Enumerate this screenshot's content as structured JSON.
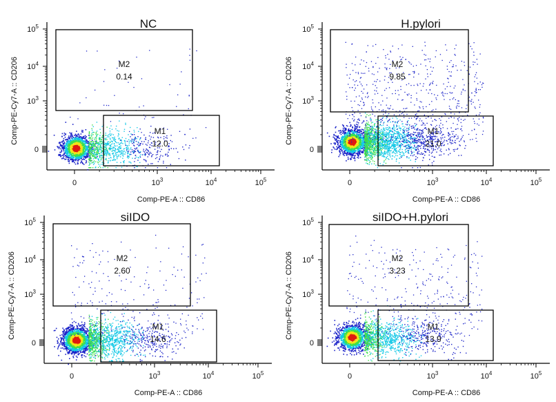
{
  "chart_data": [
    {
      "type": "scatter",
      "title": "NC",
      "xlabel": "Comp-PE-A :: CD86",
      "ylabel": "Comp-PE-Cy7-A :: CD206",
      "x_ticks": [
        "0",
        "10^3",
        "10^4",
        "10^5"
      ],
      "y_ticks": [
        "0",
        "10^3",
        "10^4",
        "10^5"
      ],
      "scale": "biexponential",
      "gates": [
        {
          "name": "M2",
          "value": "0.14"
        },
        {
          "name": "M1",
          "value": "12.0"
        }
      ]
    },
    {
      "type": "scatter",
      "title": "H.pylori",
      "xlabel": "Comp-PE-A :: CD86",
      "ylabel": "Comp-PE-Cy7-A :: CD206",
      "x_ticks": [
        "0",
        "10^3",
        "10^4",
        "10^5"
      ],
      "y_ticks": [
        "0",
        "10^3",
        "10^4",
        "10^5"
      ],
      "scale": "biexponential",
      "gates": [
        {
          "name": "M2",
          "value": "9.85"
        },
        {
          "name": "M1",
          "value": "21.0"
        }
      ]
    },
    {
      "type": "scatter",
      "title": "siIDO",
      "xlabel": "Comp-PE-A :: CD86",
      "ylabel": "Comp-PE-Cy7-A :: CD206",
      "x_ticks": [
        "0",
        "10^3",
        "10^4",
        "10^5"
      ],
      "y_ticks": [
        "0",
        "10^3",
        "10^4",
        "10^5"
      ],
      "scale": "biexponential",
      "gates": [
        {
          "name": "M2",
          "value": "2.60"
        },
        {
          "name": "M1",
          "value": "14.6"
        }
      ]
    },
    {
      "type": "scatter",
      "title": "siIDO+H.pylori",
      "xlabel": "Comp-PE-A :: CD86",
      "ylabel": "Comp-PE-Cy7-A :: CD206",
      "x_ticks": [
        "0",
        "10^3",
        "10^4",
        "10^5"
      ],
      "y_ticks": [
        "0",
        "10^3",
        "10^4",
        "10^5"
      ],
      "scale": "biexponential",
      "gates": [
        {
          "name": "M2",
          "value": "3.23"
        },
        {
          "name": "M1",
          "value": "13.9"
        }
      ]
    }
  ],
  "colors": {
    "density_low": "#1a22c8",
    "density_mid": "#12c8e6",
    "density_midhigh": "#3ee04a",
    "density_high": "#f2e418",
    "density_peak": "#e01a10",
    "axis": "#000000",
    "gate": "#000000"
  }
}
